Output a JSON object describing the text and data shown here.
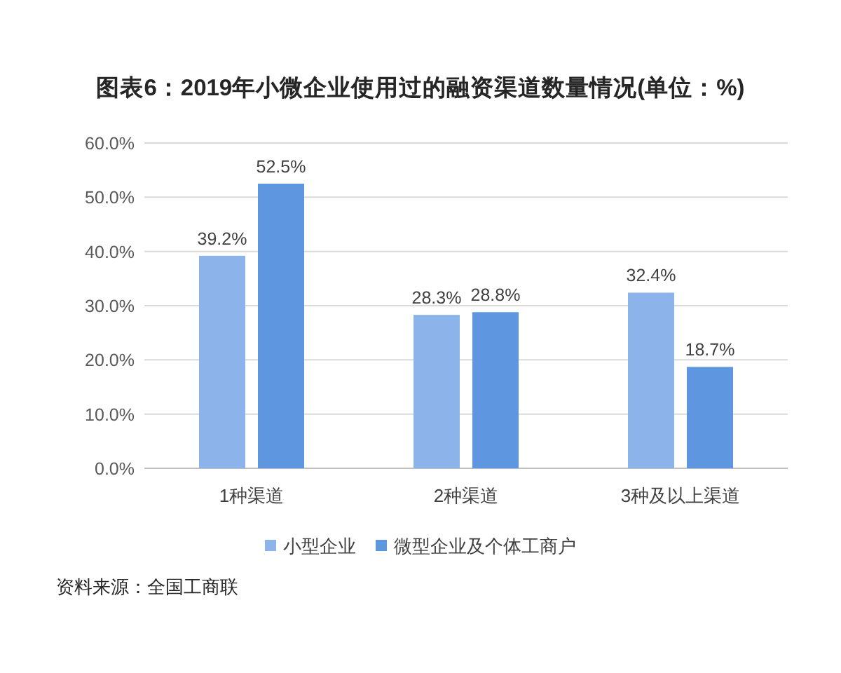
{
  "chart_data": {
    "type": "bar",
    "title": "图表6：2019年小微企业使用过的融资渠道数量情况(单位：%)",
    "categories": [
      "1种渠道",
      "2种渠道",
      "3种及以上渠道"
    ],
    "series": [
      {
        "name": "小型企业",
        "color": "#8db4ea",
        "values": [
          39.2,
          28.3,
          32.4
        ],
        "value_labels": [
          "39.2%",
          "28.3%",
          "32.4%"
        ]
      },
      {
        "name": "微型企业及个体工商户",
        "color": "#5e97e0",
        "values": [
          52.5,
          28.8,
          18.7
        ],
        "value_labels": [
          "52.5%",
          "28.8%",
          "18.7%"
        ]
      }
    ],
    "ylim": [
      0,
      60
    ],
    "yticks": [
      {
        "value": 0,
        "label": "0.0%"
      },
      {
        "value": 10,
        "label": "10.0%"
      },
      {
        "value": 20,
        "label": "20.0%"
      },
      {
        "value": 30,
        "label": "30.0%"
      },
      {
        "value": 40,
        "label": "40.0%"
      },
      {
        "value": 50,
        "label": "50.0%"
      },
      {
        "value": 60,
        "label": "60.0%"
      }
    ],
    "grid": "y",
    "legend": "bottom",
    "annotations": [
      "资料来源：全国工商联"
    ]
  }
}
